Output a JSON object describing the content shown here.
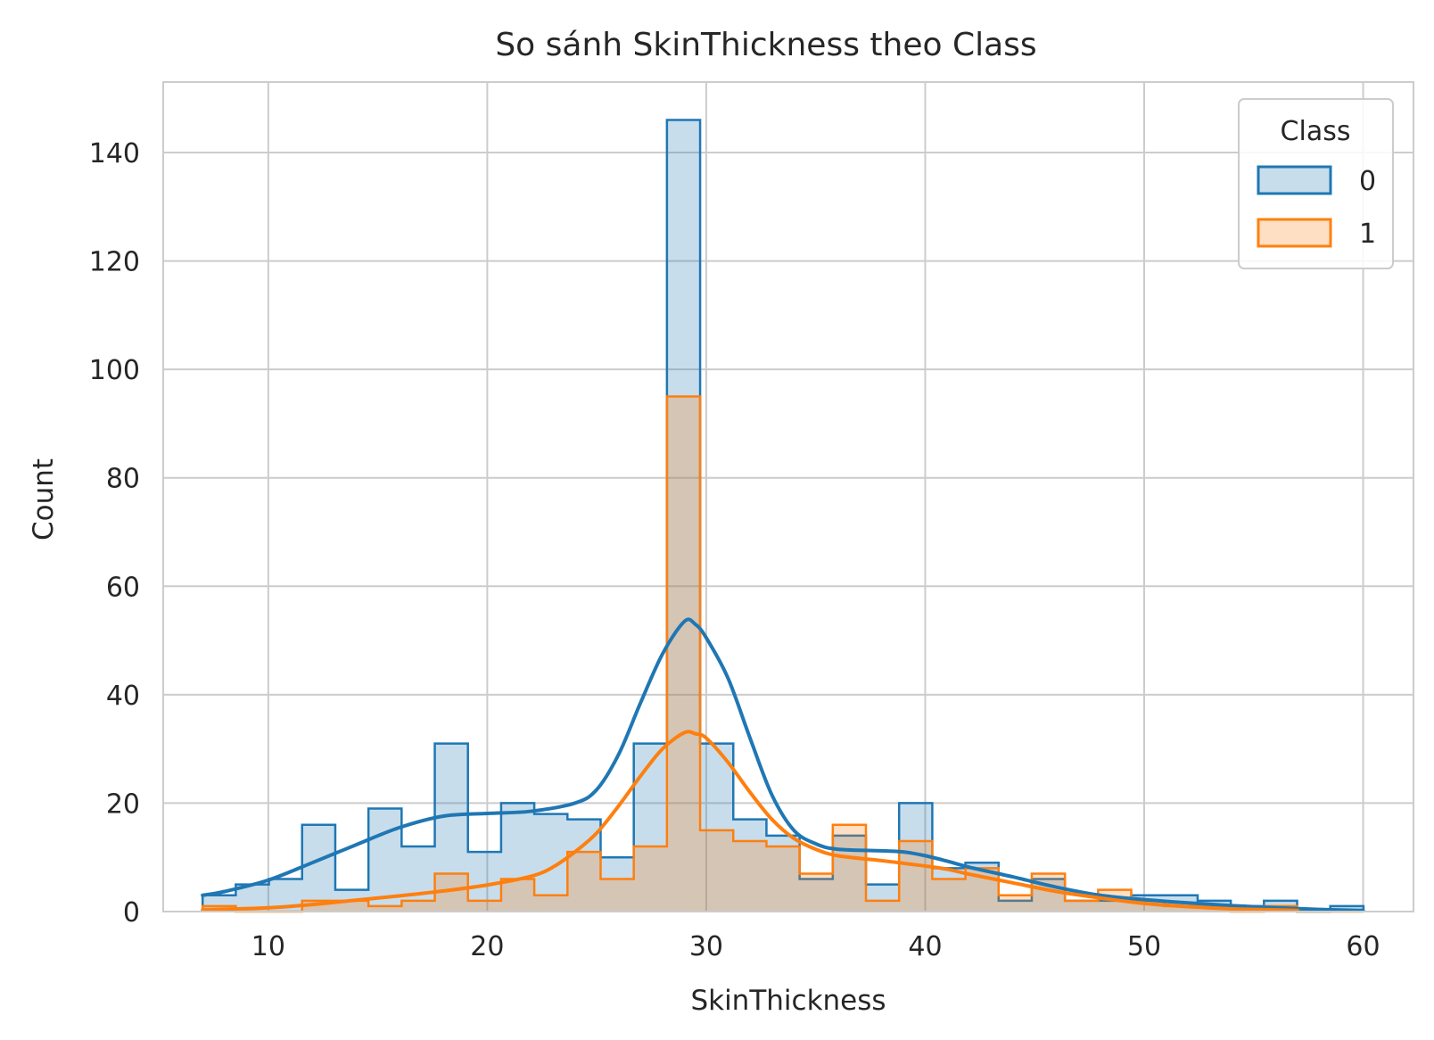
{
  "chart_data": {
    "type": "histogram",
    "title": "So sánh SkinThickness theo Class",
    "xlabel": "SkinThickness",
    "ylabel": "Count",
    "xlim": [
      5.2,
      62.3
    ],
    "ylim": [
      0,
      153
    ],
    "xticks": [
      10,
      20,
      30,
      40,
      50,
      60
    ],
    "yticks": [
      0,
      20,
      40,
      60,
      80,
      100,
      120,
      140
    ],
    "grid": true,
    "legend": {
      "title": "Class",
      "placement": "top-right"
    },
    "bin_edges": [
      7,
      8.5147,
      10.0294,
      11.5441,
      13.0588,
      14.5735,
      16.0882,
      17.6029,
      19.1176,
      20.6324,
      22.1471,
      23.6618,
      25.1765,
      26.6912,
      28.2059,
      29.7206,
      31.2353,
      32.75,
      34.2647,
      35.7794,
      37.2941,
      38.8088,
      40.3235,
      41.8382,
      43.3529,
      44.8676,
      46.3824,
      47.8971,
      49.4118,
      50.9265,
      52.4412,
      53.9559,
      55.4706,
      56.9853,
      58.5,
      60.0147
    ],
    "series": [
      {
        "name": "0",
        "color": "#1f77b4",
        "counts": [
          3,
          5,
          6,
          16,
          4,
          19,
          12,
          31,
          11,
          20,
          18,
          17,
          10,
          31,
          146,
          31,
          17,
          14,
          6,
          14,
          5,
          20,
          8,
          9,
          2,
          6,
          2,
          2,
          3,
          3,
          2,
          1,
          2,
          0,
          1
        ],
        "kde": [
          [
            7,
            3
          ],
          [
            8,
            3.7
          ],
          [
            10,
            5.8
          ],
          [
            12,
            9
          ],
          [
            14,
            12.3
          ],
          [
            16,
            15.5
          ],
          [
            18,
            17.6
          ],
          [
            20,
            18.1
          ],
          [
            22,
            18.5
          ],
          [
            24,
            20
          ],
          [
            25,
            22.5
          ],
          [
            26,
            29
          ],
          [
            27,
            38.5
          ],
          [
            28,
            47.5
          ],
          [
            29,
            53.5
          ],
          [
            29.5,
            53
          ],
          [
            30,
            50.5
          ],
          [
            31,
            43
          ],
          [
            32,
            32
          ],
          [
            33,
            21.5
          ],
          [
            34,
            15
          ],
          [
            35,
            12.5
          ],
          [
            36,
            11.5
          ],
          [
            38,
            11.2
          ],
          [
            39,
            11
          ],
          [
            40,
            10.3
          ],
          [
            41,
            9.3
          ],
          [
            42,
            8.2
          ],
          [
            44,
            6.4
          ],
          [
            46,
            4.5
          ],
          [
            48,
            3
          ],
          [
            50,
            2.2
          ],
          [
            52,
            1.6
          ],
          [
            54,
            1.1
          ],
          [
            56,
            0.7
          ],
          [
            58,
            0.4
          ],
          [
            60,
            0.2
          ]
        ]
      },
      {
        "name": "1",
        "color": "#ff7f0e",
        "counts": [
          1,
          0,
          0,
          2,
          2,
          1,
          2,
          7,
          2,
          6,
          3,
          11,
          6,
          12,
          95,
          15,
          13,
          12,
          7,
          16,
          2,
          13,
          6,
          8,
          3,
          7,
          2,
          4,
          2,
          1,
          1,
          0,
          1,
          0,
          0
        ],
        "kde": [
          [
            7,
            0.3
          ],
          [
            10,
            0.7
          ],
          [
            12,
            1.3
          ],
          [
            14,
            2.1
          ],
          [
            16,
            2.9
          ],
          [
            18,
            3.8
          ],
          [
            20,
            4.9
          ],
          [
            22,
            6.5
          ],
          [
            23,
            8.2
          ],
          [
            24,
            11
          ],
          [
            25,
            14.5
          ],
          [
            26,
            19.5
          ],
          [
            27,
            25
          ],
          [
            28,
            30
          ],
          [
            29,
            33
          ],
          [
            29.5,
            32.8
          ],
          [
            30,
            32
          ],
          [
            31,
            27.5
          ],
          [
            32,
            22
          ],
          [
            33,
            17
          ],
          [
            34,
            13.5
          ],
          [
            35,
            11.5
          ],
          [
            36,
            10.3
          ],
          [
            38,
            9.4
          ],
          [
            40,
            8.4
          ],
          [
            41,
            7.8
          ],
          [
            42,
            6.9
          ],
          [
            44,
            5.3
          ],
          [
            46,
            3.7
          ],
          [
            48,
            2.5
          ],
          [
            50,
            1.5
          ],
          [
            52,
            0.9
          ],
          [
            54,
            0.5
          ],
          [
            56,
            0.3
          ],
          [
            57,
            0.2
          ]
        ]
      }
    ]
  }
}
